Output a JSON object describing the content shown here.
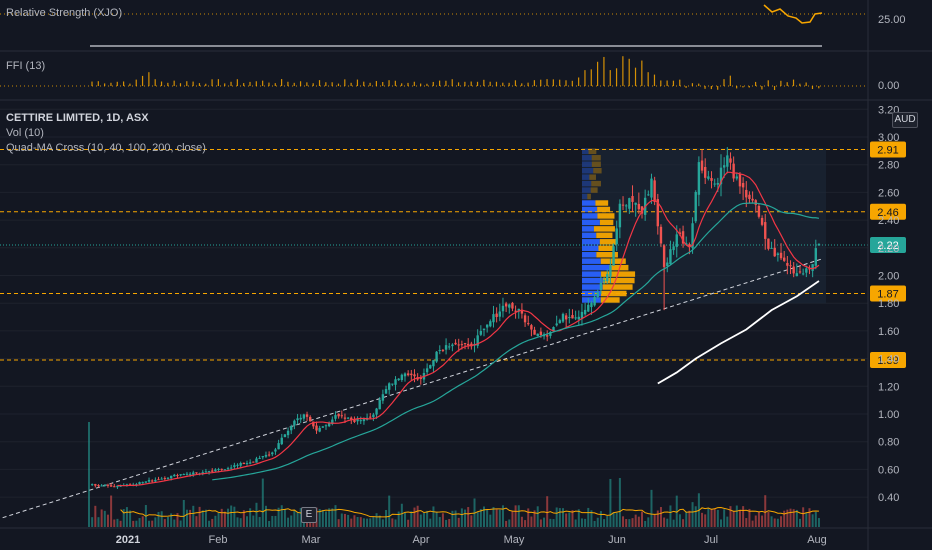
{
  "panes": {
    "rs": {
      "label": "Relative Strength (XJO)",
      "tick": "25.00"
    },
    "ffi": {
      "label": "FFI (13)",
      "tick": "0.00"
    }
  },
  "main": {
    "title": "CETTIRE LIMITED, 1D, ASX",
    "vol_label": "Vol (10)",
    "ma_label": "Quad-MA Cross (10, 40, 100, 200, close)",
    "currency": "AUD",
    "event_icon": "E"
  },
  "colors": {
    "background": "#131722",
    "up": "#26a69a",
    "down": "#ef5350",
    "level_line": "#f7a600",
    "price_tag": "#26a69a",
    "ma10": "#f23645",
    "ma40": "#26a69a",
    "ma200": "#ffffff",
    "rs_line": "#f7a600",
    "volume_ma": "#f7a600",
    "profile_buy": "#2962ff",
    "profile_sell": "#f7a600"
  },
  "chart_data": {
    "type": "candlestick",
    "symbol": "CETTIRE LIMITED",
    "interval": "1D",
    "exchange": "ASX",
    "y_axis": {
      "ticks": [
        "3.20",
        "3.00",
        "2.80",
        "2.60",
        "2.40",
        "2.20",
        "2.00",
        "1.80",
        "1.60",
        "1.40",
        "1.20",
        "1.00",
        "0.80",
        "0.60",
        "0.40"
      ],
      "range": [
        0.2,
        3.2
      ]
    },
    "x_axis": {
      "ticks": [
        "2021",
        "Feb",
        "Mar",
        "Apr",
        "May",
        "Jun",
        "Jul",
        "Aug"
      ]
    },
    "horizontal_levels": [
      {
        "value": 2.91,
        "label": "2.91"
      },
      {
        "value": 2.46,
        "label": "2.46"
      },
      {
        "value": 1.87,
        "label": "1.87"
      },
      {
        "value": 1.39,
        "label": "1.39"
      }
    ],
    "last_price": {
      "value": 2.22,
      "label": "2.22"
    },
    "price_path": [
      [
        0,
        0.49
      ],
      [
        8,
        0.48
      ],
      [
        15,
        0.5
      ],
      [
        22,
        0.53
      ],
      [
        30,
        0.57
      ],
      [
        38,
        0.58
      ],
      [
        45,
        0.62
      ],
      [
        52,
        0.66
      ],
      [
        58,
        0.72
      ],
      [
        62,
        0.85
      ],
      [
        65,
        0.95
      ],
      [
        68,
        1.0
      ],
      [
        72,
        0.88
      ],
      [
        78,
        0.98
      ],
      [
        85,
        0.95
      ],
      [
        90,
        1.0
      ],
      [
        95,
        1.22
      ],
      [
        100,
        1.3
      ],
      [
        105,
        1.25
      ],
      [
        110,
        1.45
      ],
      [
        115,
        1.52
      ],
      [
        120,
        1.48
      ],
      [
        125,
        1.6
      ],
      [
        128,
        1.7
      ],
      [
        132,
        1.8
      ],
      [
        137,
        1.72
      ],
      [
        140,
        1.6
      ],
      [
        145,
        1.58
      ],
      [
        150,
        1.7
      ],
      [
        155,
        1.72
      ],
      [
        160,
        1.85
      ],
      [
        165,
        2.05
      ],
      [
        168,
        2.5
      ],
      [
        172,
        2.55
      ],
      [
        175,
        2.45
      ],
      [
        178,
        2.7
      ],
      [
        182,
        2.05
      ],
      [
        186,
        2.3
      ],
      [
        190,
        2.22
      ],
      [
        193,
        2.8
      ],
      [
        198,
        2.66
      ],
      [
        202,
        2.85
      ],
      [
        206,
        2.62
      ],
      [
        210,
        2.55
      ],
      [
        215,
        2.2
      ],
      [
        220,
        2.1
      ],
      [
        224,
        2.02
      ],
      [
        228,
        2.06
      ],
      [
        231,
        2.22
      ]
    ],
    "trend_line": {
      "from": [
        -40,
        0.16
      ],
      "to": [
        232,
        2.12
      ]
    },
    "ma200": [
      [
        180,
        1.22
      ],
      [
        186,
        1.3
      ],
      [
        192,
        1.4
      ],
      [
        200,
        1.51
      ],
      [
        208,
        1.61
      ],
      [
        216,
        1.75
      ],
      [
        224,
        1.85
      ],
      [
        231,
        1.96
      ]
    ],
    "volume_profile": {
      "price_range": [
        1.8,
        2.92
      ]
    },
    "event": {
      "label": "E"
    }
  }
}
